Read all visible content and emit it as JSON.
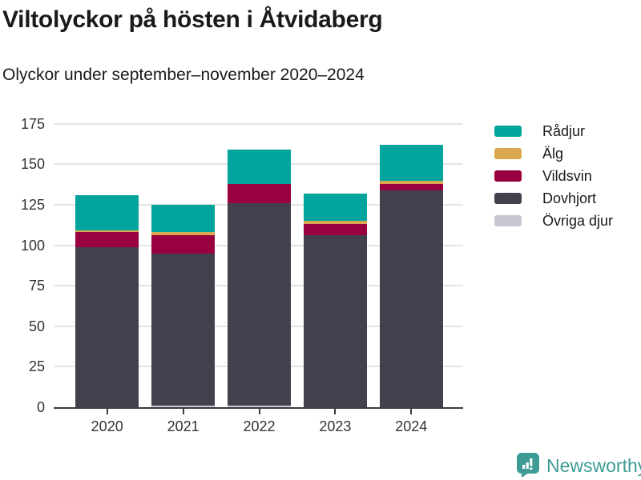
{
  "header": {
    "title": "Viltolyckor på hösten i Åtvidaberg",
    "subtitle": "Olyckor under september–november 2020–2024"
  },
  "chart_data": {
    "type": "bar",
    "stacked": true,
    "title": "Viltolyckor på hösten i Åtvidaberg",
    "subtitle": "Olyckor under september–november 2020–2024",
    "categories": [
      "2020",
      "2021",
      "2022",
      "2023",
      "2024"
    ],
    "series": [
      {
        "name": "Övriga djur",
        "color": "#c7c6d1",
        "values": [
          0,
          1,
          1,
          0,
          0
        ]
      },
      {
        "name": "Dovhjort",
        "color": "#44414e",
        "values": [
          99,
          94,
          125,
          106,
          134
        ]
      },
      {
        "name": "Vildsvin",
        "color": "#990040",
        "values": [
          9,
          11,
          12,
          7,
          4
        ]
      },
      {
        "name": "Älg",
        "color": "#d9a850",
        "values": [
          1,
          2,
          0,
          2,
          2
        ]
      },
      {
        "name": "Rådjur",
        "color": "#00a49c",
        "values": [
          22,
          17,
          21,
          17,
          22
        ]
      }
    ],
    "totals": [
      131,
      125,
      159,
      132,
      162
    ],
    "xlabel": "",
    "ylabel": "",
    "ylim": [
      0,
      175
    ],
    "yticks": [
      0,
      25,
      50,
      75,
      100,
      125,
      150,
      175
    ],
    "grid": true,
    "legend_position": "right",
    "legend_order_top_to_bottom": [
      "Rådjur",
      "Älg",
      "Vildsvin",
      "Dovhjort",
      "Övriga djur"
    ],
    "colors": {
      "gridline": "#e4e4e4",
      "axis": "#3d3d3d",
      "tick_label": "#333333"
    }
  },
  "footer": {
    "brand": "Newsworthy",
    "brand_color": "#3d9b94"
  }
}
